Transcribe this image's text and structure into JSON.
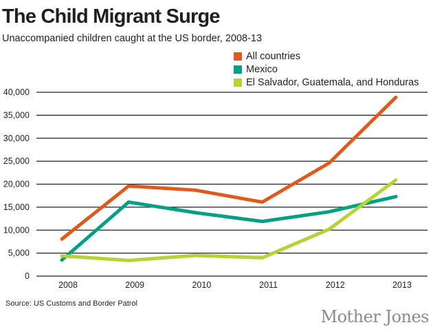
{
  "chart_data": {
    "type": "line",
    "title": "The Child Migrant Surge",
    "subtitle": "Unaccompanied children caught at the US border, 2008-13",
    "x": [
      "2008",
      "2009",
      "2010",
      "2011",
      "2012",
      "2013"
    ],
    "ylim": [
      0,
      40000
    ],
    "yticks": [
      "0",
      "5,000",
      "10,000",
      "15,000",
      "20,000",
      "25,000",
      "30,000",
      "35,000",
      "40,000"
    ],
    "ytick_values": [
      0,
      5000,
      10000,
      15000,
      20000,
      25000,
      30000,
      35000,
      40000
    ],
    "grid": true,
    "legend_position": "top-right",
    "series": [
      {
        "name": "All countries",
        "color": "#e05a1e",
        "values": [
          8050,
          19600,
          18700,
          16100,
          24600,
          38900
        ]
      },
      {
        "name": "Mexico",
        "color": "#00a084",
        "values": [
          3500,
          16100,
          13800,
          11900,
          14000,
          17300
        ]
      },
      {
        "name": "El Salvador, Guatemala, and Honduras",
        "color": "#b5d334",
        "values": [
          4400,
          3400,
          4500,
          4000,
          10200,
          20900
        ]
      }
    ],
    "source": "Source: US Customs and Border Patrol"
  },
  "logo": "Mother Jones"
}
